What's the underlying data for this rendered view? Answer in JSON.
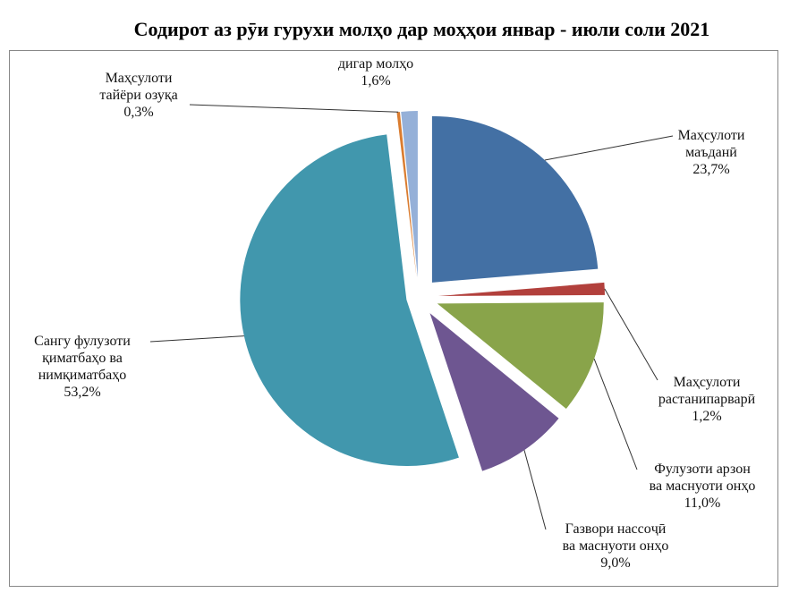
{
  "chart_data": {
    "type": "pie",
    "title": "Содирот аз рӯи гурухи молҳо дар моҳҳои январ - июли соли 2021",
    "slices": [
      {
        "name": "Маҳсулоти маъданӣ",
        "value": 23.7,
        "label": "23,7%",
        "color": "#4370a4"
      },
      {
        "name": "Маҳсулоти растанипарварӣ",
        "value": 1.2,
        "label": "1,2%",
        "color": "#b2403c"
      },
      {
        "name": "Фулузоти арзон ва маснуоти онҳо",
        "value": 11.0,
        "label": "11,0%",
        "color": "#89a44a"
      },
      {
        "name": "Газвори нассоҷӣ ва маснуоти онҳо",
        "value": 9.0,
        "label": "9,0%",
        "color": "#6e5691"
      },
      {
        "name": "Сангу фулузоти қиматбаҳо ва нимқиматбаҳо",
        "value": 53.2,
        "label": "53,2%",
        "color": "#4197ad"
      },
      {
        "name": "Маҳсулоти тайёри озуқа",
        "value": 0.3,
        "label": "0,3%",
        "color": "#da7c2f"
      },
      {
        "name": "дигар молҳо",
        "value": 1.6,
        "label": "1,6%",
        "color": "#95b0d8"
      }
    ]
  }
}
